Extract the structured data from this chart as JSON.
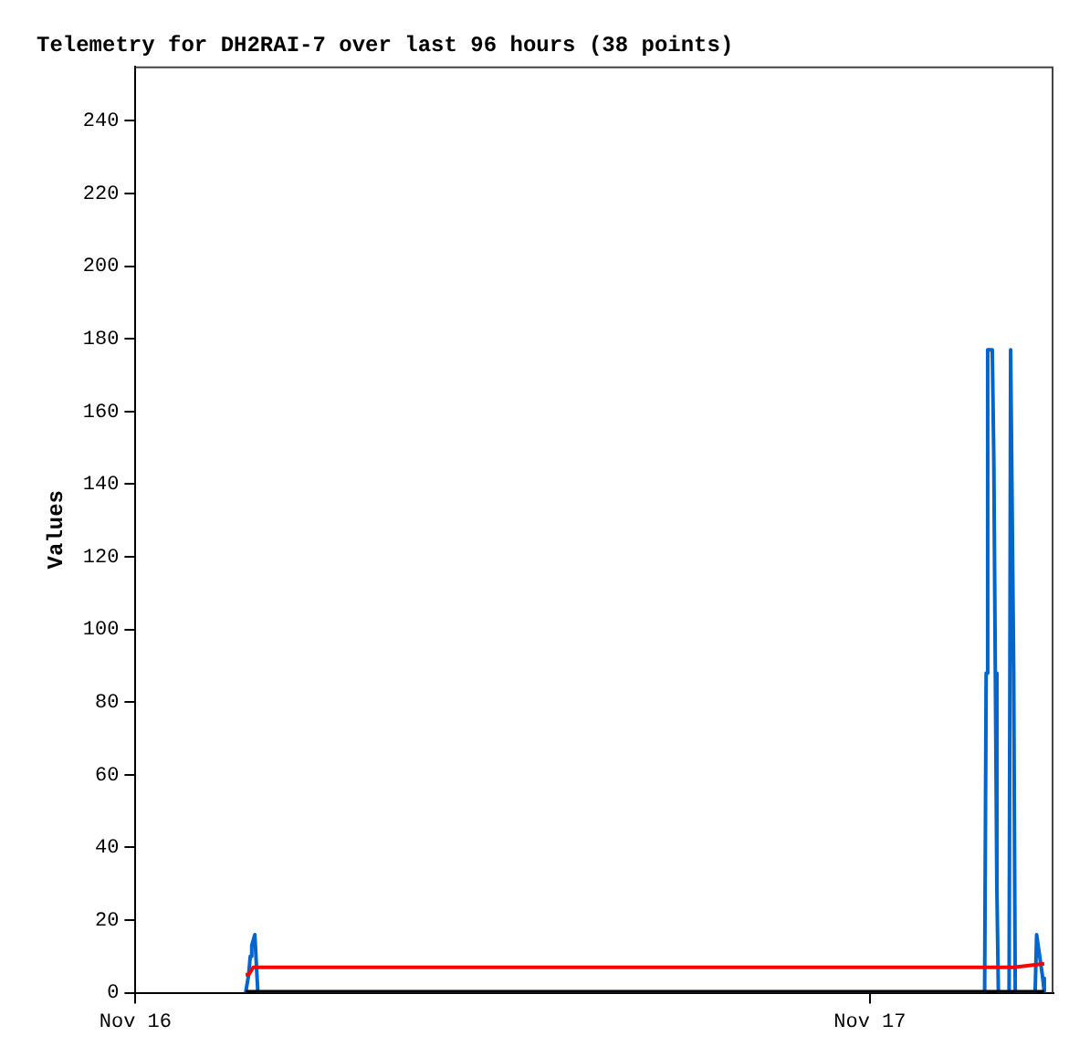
{
  "chart_data": {
    "type": "line",
    "title": "Telemetry for DH2RAI-7 over last 96 hours (38 points)",
    "ylabel": "Values",
    "xlim": [
      "--11-16T00:00",
      "--11-17T06:00"
    ],
    "xticks": [
      {
        "value": "--11-16T00:00",
        "label": "Nov 16"
      },
      {
        "value": "--11-17T00:00",
        "label": "Nov 17"
      }
    ],
    "ylim": [
      0,
      255
    ],
    "yticks": [
      0,
      20,
      40,
      60,
      80,
      100,
      120,
      140,
      160,
      180,
      200,
      220,
      240
    ],
    "grid": false,
    "legend": false,
    "marker": "none",
    "line_style": "solid",
    "series": [
      {
        "color": "#000000",
        "x": [
          "--11-16T03:36",
          "--11-17T05:42"
        ],
        "values": [
          0,
          0
        ]
      },
      {
        "color": "#ff0000",
        "x": [
          "--11-16T03:36",
          "--11-16T03:42",
          "--11-16T03:51",
          "--11-17T04:42",
          "--11-17T05:42"
        ],
        "values": [
          5,
          5,
          7,
          7,
          8
        ]
      },
      {
        "color": "#0066cc",
        "x": [
          "--11-16T03:36",
          "--11-16T03:42",
          "--11-16T03:45",
          "--11-16T03:48",
          "--11-16T03:54",
          "--11-16T03:57",
          "--11-16T04:00",
          "--11-17T03:45",
          "--11-17T03:48",
          "--11-17T03:51",
          "--11-17T04:00",
          "--11-17T04:03",
          "--11-17T04:06",
          "--11-17T04:09",
          "--11-17T04:12",
          "--11-17T04:33",
          "--11-17T04:36",
          "--11-17T04:42",
          "--11-17T04:45",
          "--11-17T05:24",
          "--11-17T05:27",
          "--11-17T05:33",
          "--11-17T05:39",
          "--11-17T05:42"
        ],
        "values": [
          0,
          5,
          10,
          13,
          16,
          8,
          0,
          0,
          88,
          177,
          177,
          147,
          88,
          29,
          0,
          0,
          177,
          88,
          0,
          0,
          16,
          10,
          4,
          0
        ]
      }
    ]
  }
}
